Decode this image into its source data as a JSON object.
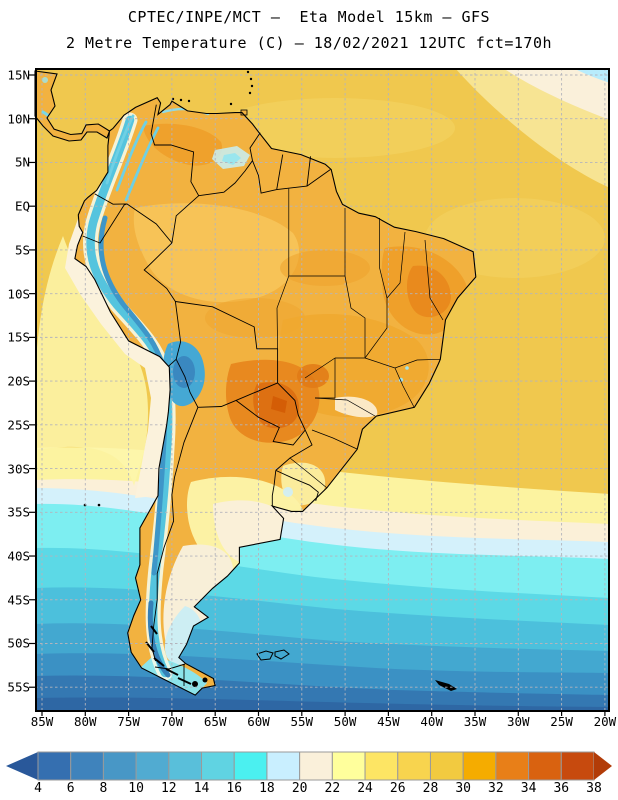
{
  "header": {
    "line1": "CPTEC/INPE/MCT –  Eta Model 15km – GFS",
    "line2": "2 Metre Temperature (C) – 18/02/2021 12UTC fct=170h"
  },
  "map": {
    "lat_ticks": [
      "15N",
      "10N",
      "5N",
      "EQ",
      "5S",
      "10S",
      "15S",
      "20S",
      "25S",
      "30S",
      "35S",
      "40S",
      "45S",
      "50S",
      "55S"
    ],
    "lon_ticks": [
      "85W",
      "80W",
      "75W",
      "70W",
      "65W",
      "60W",
      "55W",
      "50W",
      "45W",
      "40W",
      "35W",
      "30W",
      "25W",
      "20W"
    ]
  },
  "colorbar": {
    "tick_labels": [
      "4",
      "6",
      "8",
      "10",
      "12",
      "14",
      "16",
      "18",
      "20",
      "22",
      "24",
      "26",
      "28",
      "30",
      "32",
      "34",
      "36",
      "38"
    ],
    "segment_colors": [
      "#356fb0",
      "#3f83bc",
      "#4897c6",
      "#51abd1",
      "#59bfda",
      "#60d3e2",
      "#4bf0f0",
      "#c9efff",
      "#faf0da",
      "#ffff9c",
      "#fde564",
      "#f8d44e",
      "#f2ca40",
      "#f5ac00",
      "#e87f18",
      "#d96210",
      "#c74a0e"
    ],
    "left_arrow_color": "#29589a",
    "right_arrow_color": "#b23c08",
    "border_color": "#9a9a9a"
  },
  "chart_data": {
    "type": "heatmap",
    "title": "CPTEC/INPE/MCT –  Eta Model 15km – GFS",
    "subtitle": "2 Metre Temperature (C) – 18/02/2021 12UTC fct=170h",
    "institution": "CPTEC/INPE/MCT",
    "model": "Eta Model 15km – GFS",
    "variable": "2 Metre Temperature",
    "units": "C",
    "valid": "18/02/2021 12UTC",
    "forecast": "fct=170h",
    "x_axis": {
      "label": "longitude",
      "ticks": [
        "85W",
        "80W",
        "75W",
        "70W",
        "65W",
        "60W",
        "55W",
        "50W",
        "45W",
        "40W",
        "35W",
        "30W",
        "25W",
        "20W"
      ],
      "range": [
        "85W",
        "20W"
      ]
    },
    "y_axis": {
      "label": "latitude",
      "ticks": [
        "15N",
        "10N",
        "5N",
        "EQ",
        "5S",
        "10S",
        "15S",
        "20S",
        "25S",
        "30S",
        "35S",
        "40S",
        "45S",
        "50S",
        "55S"
      ],
      "range": [
        "15N",
        "55S"
      ]
    },
    "grid": "dashed gray every 5 degrees",
    "legend_position": "bottom horizontal colorbar with out-of-range arrows",
    "colorbar_ticks_c": [
      4,
      6,
      8,
      10,
      12,
      14,
      16,
      18,
      20,
      22,
      24,
      26,
      28,
      30,
      32,
      34,
      36,
      38
    ],
    "colorbar_colors": [
      "#356fb0",
      "#3f83bc",
      "#4897c6",
      "#51abd1",
      "#59bfda",
      "#60d3e2",
      "#4bf0f0",
      "#c9efff",
      "#faf0da",
      "#ffff9c",
      "#fde564",
      "#f8d44e",
      "#f2ca40",
      "#f5ac00",
      "#e87f18",
      "#d96210",
      "#c74a0e"
    ],
    "field_features": [
      "Tropical continent and ocean mostly 26-30 C (gold/orange)",
      "Hot core 32-38 C over Paraguay, Mato Grosso do Sul and northern Argentina",
      "Warm 30-34 C patches over interior northeast Brazil and Venezuelan llanos",
      "Cold Andes ridge 4-16 C (cyan/blue band) from Colombia to Tierra del Fuego",
      "Cool cream band 18-22 C along Peru-Chile coastal upwelling zone",
      "Pampas and Patagonia 18-24 C (cream/pale yellow)",
      "Southern ocean gradient from 16-18 C near 40S down to 4-8 C near 55S",
      "Pale cool patch in far northeast Atlantic corner"
    ]
  }
}
